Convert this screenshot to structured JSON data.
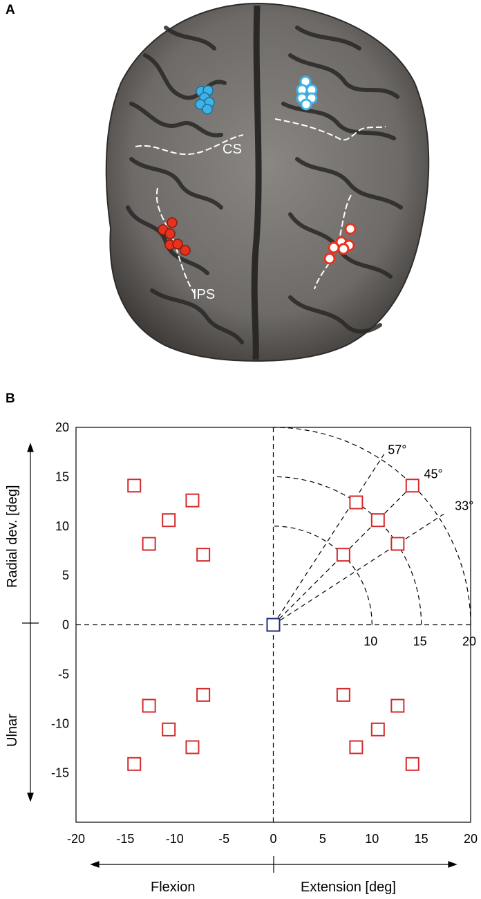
{
  "panel_a": {
    "label": "A",
    "annotations": {
      "cs": "CS",
      "ips": "IPS"
    }
  },
  "panel_b": {
    "label": "B"
  },
  "colors": {
    "cyan": "#3fb3e3",
    "red": "#e8321e",
    "target": "#d42a2a",
    "center": "#1f2a7a"
  },
  "chart_data": {
    "type": "scatter",
    "xlim": [
      -20,
      20
    ],
    "ylim": [
      -20,
      20
    ],
    "xticks": [
      -20,
      -15,
      -10,
      -5,
      0,
      5,
      10,
      15,
      20
    ],
    "yticks": [
      -15,
      -10,
      -5,
      0,
      5,
      10,
      15,
      20
    ],
    "xlabel_left": "Flexion",
    "xlabel_right": "Extension [deg]",
    "ylabel_top": "Radial dev. [deg]",
    "ylabel_bottom": "Ulnar",
    "center_target": [
      0,
      0
    ],
    "targets": [
      [
        -14.1,
        14.1
      ],
      [
        -12.6,
        8.2
      ],
      [
        -10.6,
        10.6
      ],
      [
        -8.2,
        12.6
      ],
      [
        -7.1,
        7.1
      ],
      [
        7.1,
        7.1
      ],
      [
        8.4,
        12.4
      ],
      [
        10.6,
        10.6
      ],
      [
        12.6,
        8.2
      ],
      [
        14.1,
        14.1
      ],
      [
        -14.1,
        -14.1
      ],
      [
        -12.6,
        -8.2
      ],
      [
        -10.6,
        -10.6
      ],
      [
        -8.2,
        -12.4
      ],
      [
        -7.1,
        -7.1
      ],
      [
        7.1,
        -7.1
      ],
      [
        8.4,
        -12.4
      ],
      [
        10.6,
        -10.6
      ],
      [
        12.6,
        -8.2
      ],
      [
        14.1,
        -14.1
      ]
    ],
    "arcs": [
      10,
      15,
      20
    ],
    "arc_labels": [
      "10",
      "15",
      "20"
    ],
    "rays_deg": [
      57,
      45,
      33
    ],
    "ray_labels": [
      "57°",
      "45°",
      "33°"
    ]
  }
}
